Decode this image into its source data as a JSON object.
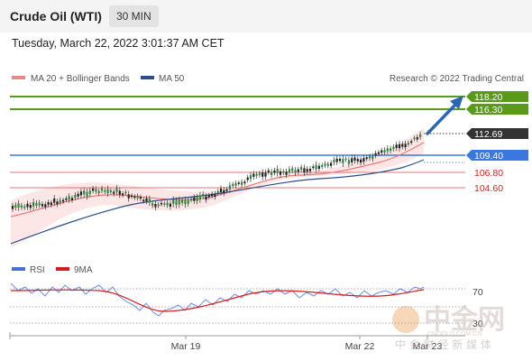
{
  "header": {
    "title": "Crude Oil (WTI)",
    "timeframe": "30 MIN"
  },
  "datetime": "Tuesday, March 22, 2022 3:01:37 AM CET",
  "legend": {
    "bollinger_label": "MA 20 + Bollinger Bands",
    "bollinger_color": "#ee8888",
    "ma50_label": "MA 50",
    "ma50_color": "#2a4f8a",
    "research": "Research © 2022 Trading Central"
  },
  "price_levels": {
    "targets": [
      "118.20",
      "116.30"
    ],
    "last_price": "112.69",
    "pivot": "109.40",
    "supports": [
      "106.80",
      "104.60"
    ]
  },
  "rsi": {
    "rsi_label": "RSI",
    "rsi_color": "#4a6fd8",
    "ma_label": "9MA",
    "ma_color": "#d81c1c",
    "level_70": "70",
    "level_30": "30"
  },
  "x_axis": {
    "ticks": [
      "Mar 19",
      "Mar 22",
      "Mar 23"
    ]
  },
  "watermark": {
    "chinese": "中金网",
    "domain": "CNGOLD.COM.CN",
    "sub": "中 金 财 经 新 媒 体"
  },
  "colors": {
    "target_green": "#5a9a1a",
    "pivot_blue": "#3a78e0",
    "support_red": "#cc2222",
    "price_dark": "#333333",
    "arrow_blue": "#2a66b8"
  }
}
